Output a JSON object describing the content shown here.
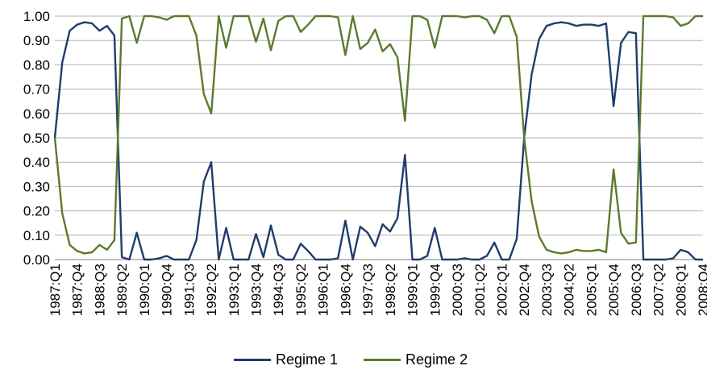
{
  "chart_data": {
    "type": "line",
    "title": "",
    "xlabel": "",
    "ylabel": "",
    "ylim": [
      0,
      1
    ],
    "y_ticks": [
      "0.00",
      "0.10",
      "0.20",
      "0.30",
      "0.40",
      "0.50",
      "0.60",
      "0.70",
      "0.80",
      "0.90",
      "1.00"
    ],
    "grid": "horizontal",
    "legend_position": "bottom",
    "categories": [
      "1987:Q1",
      "1987:Q2",
      "1987:Q3",
      "1987:Q4",
      "1988:Q1",
      "1988:Q2",
      "1988:Q3",
      "1988:Q4",
      "1989:Q1",
      "1989:Q2",
      "1989:Q3",
      "1989:Q4",
      "1990:Q1",
      "1990:Q2",
      "1990:Q3",
      "1990:Q4",
      "1991:Q1",
      "1991:Q2",
      "1991:Q3",
      "1991:Q4",
      "1992:Q1",
      "1992:Q2",
      "1992:Q3",
      "1992:Q4",
      "1993:Q1",
      "1993:Q2",
      "1993:Q3",
      "1993:Q4",
      "1994:Q1",
      "1994:Q2",
      "1994:Q3",
      "1994:Q4",
      "1995:Q1",
      "1995:Q2",
      "1995:Q3",
      "1995:Q4",
      "1996:Q1",
      "1996:Q2",
      "1996:Q3",
      "1996:Q4",
      "1997:Q1",
      "1997:Q2",
      "1997:Q3",
      "1997:Q4",
      "1998:Q1",
      "1998:Q2",
      "1998:Q3",
      "1998:Q4",
      "1999:Q1",
      "1999:Q2",
      "1999:Q3",
      "1999:Q4",
      "2000:Q1",
      "2000:Q2",
      "2000:Q3",
      "2000:Q4",
      "2001:Q1",
      "2001:Q2",
      "2001:Q3",
      "2001:Q4",
      "2002:Q1",
      "2002:Q2",
      "2002:Q3",
      "2002:Q4",
      "2003:Q1",
      "2003:Q2",
      "2003:Q3",
      "2003:Q4",
      "2004:Q1",
      "2004:Q2",
      "2004:Q3",
      "2004:Q4",
      "2005:Q1",
      "2005:Q2",
      "2005:Q3",
      "2005:Q4",
      "2006:Q1",
      "2006:Q2",
      "2006:Q3",
      "2006:Q4",
      "2007:Q1",
      "2007:Q2",
      "2007:Q3",
      "2007:Q4",
      "2008:Q1",
      "2008:Q2",
      "2008:Q3",
      "2008:Q4"
    ],
    "tick_labels": [
      "1987:Q1",
      "1987:Q4",
      "1988:Q3",
      "1989:Q2",
      "1990:Q1",
      "1990:Q4",
      "1991:Q3",
      "1992:Q2",
      "1993:Q1",
      "1993:Q4",
      "1994:Q3",
      "1995:Q2",
      "1996:Q1",
      "1996:Q4",
      "1997:Q3",
      "1998:Q2",
      "1999:Q1",
      "1999:Q4",
      "2000:Q3",
      "2001:Q2",
      "2002:Q1",
      "2002:Q4",
      "2003:Q3",
      "2004:Q2",
      "2005:Q1",
      "2005:Q4",
      "2006:Q3",
      "2007:Q2",
      "2008:Q1",
      "2008:Q4"
    ],
    "series": [
      {
        "name": "Regime 1",
        "color": "#1f3d6b",
        "values": [
          0.5,
          0.81,
          0.94,
          0.965,
          0.975,
          0.97,
          0.94,
          0.96,
          0.92,
          0.01,
          0.0,
          0.11,
          0.0,
          0.0,
          0.005,
          0.015,
          0.0,
          0.0,
          0.0,
          0.08,
          0.32,
          0.4,
          0.0,
          0.13,
          0.0,
          0.0,
          0.0,
          0.105,
          0.01,
          0.14,
          0.02,
          0.0,
          0.0,
          0.065,
          0.035,
          0.0,
          0.0,
          0.0,
          0.005,
          0.16,
          0.0,
          0.135,
          0.11,
          0.055,
          0.145,
          0.115,
          0.17,
          0.43,
          0.0,
          0.0,
          0.015,
          0.13,
          0.0,
          0.0,
          0.0,
          0.005,
          0.0,
          0.0,
          0.015,
          0.07,
          0.0,
          0.0,
          0.085,
          0.5,
          0.76,
          0.905,
          0.96,
          0.97,
          0.975,
          0.97,
          0.96,
          0.965,
          0.965,
          0.96,
          0.97,
          0.63,
          0.89,
          0.935,
          0.93,
          0.0,
          0.0,
          0.0,
          0.0,
          0.005,
          0.04,
          0.03,
          0.0,
          0.0
        ]
      },
      {
        "name": "Regime 2",
        "color": "#5b7a2e",
        "values": [
          0.5,
          0.19,
          0.06,
          0.035,
          0.025,
          0.03,
          0.06,
          0.04,
          0.08,
          0.99,
          1.0,
          0.89,
          1.0,
          1.0,
          0.995,
          0.985,
          1.0,
          1.0,
          1.0,
          0.92,
          0.68,
          0.6,
          1.0,
          0.87,
          1.0,
          1.0,
          1.0,
          0.895,
          0.99,
          0.86,
          0.98,
          1.0,
          1.0,
          0.935,
          0.965,
          1.0,
          1.0,
          1.0,
          0.995,
          0.84,
          1.0,
          0.865,
          0.89,
          0.945,
          0.855,
          0.885,
          0.83,
          0.57,
          1.0,
          1.0,
          0.985,
          0.87,
          1.0,
          1.0,
          1.0,
          0.995,
          1.0,
          1.0,
          0.985,
          0.93,
          1.0,
          1.0,
          0.915,
          0.5,
          0.24,
          0.095,
          0.04,
          0.03,
          0.025,
          0.03,
          0.04,
          0.035,
          0.035,
          0.04,
          0.03,
          0.37,
          0.11,
          0.065,
          0.07,
          1.0,
          1.0,
          1.0,
          1.0,
          0.995,
          0.96,
          0.97,
          1.0,
          1.0
        ]
      }
    ]
  }
}
